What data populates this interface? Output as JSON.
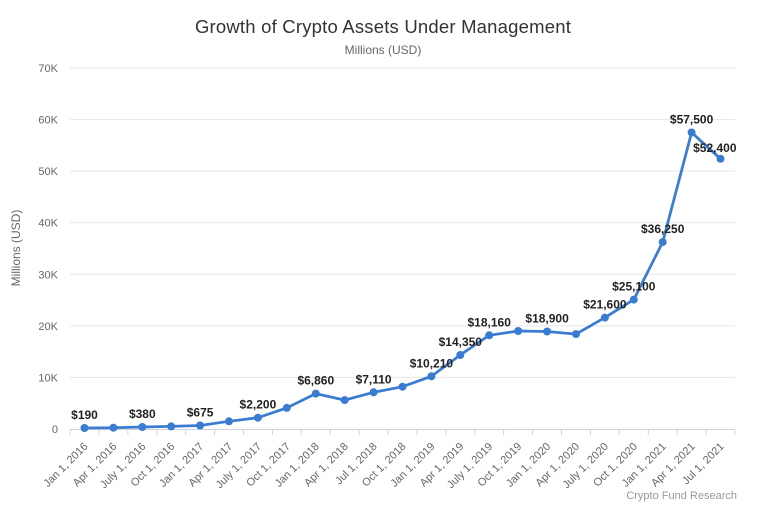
{
  "chart_data": {
    "type": "line",
    "title": "Growth of Crypto Assets Under Management",
    "subtitle": "Millions (USD)",
    "ylabel": "Millions (USD)",
    "credit": "Crypto Fund Research",
    "legend": "none",
    "grid": "horizontal",
    "ylim": [
      0,
      70000
    ],
    "ytick_step": 10000,
    "ytick_labels": [
      "0",
      "10K",
      "20K",
      "30K",
      "40K",
      "50K",
      "60K",
      "70K"
    ],
    "colors": {
      "line": "#3b7cd3",
      "marker": "#3b7cd3",
      "data_label": "#222222",
      "grid": "#e6e6e6",
      "axis": "#ccd3dd",
      "tick_label": "#666666",
      "title": "#333333",
      "credit": "#999999"
    },
    "points": [
      {
        "x": "Jan 1, 2016",
        "value": 190,
        "label": "$190"
      },
      {
        "x": "Apr 1, 2016",
        "value": 250,
        "label": null
      },
      {
        "x": "July 1, 2016",
        "value": 380,
        "label": "$380"
      },
      {
        "x": "Oct 1, 2016",
        "value": 500,
        "label": null
      },
      {
        "x": "Jan 1, 2017",
        "value": 675,
        "label": "$675"
      },
      {
        "x": "Apr 1, 2017",
        "value": 1500,
        "label": null
      },
      {
        "x": "July 1, 2017",
        "value": 2200,
        "label": "$2,200"
      },
      {
        "x": "Oct 1, 2017",
        "value": 4100,
        "label": null
      },
      {
        "x": "Jan 1, 2018",
        "value": 6860,
        "label": "$6,860"
      },
      {
        "x": "Apr 1, 2018",
        "value": 5600,
        "label": null
      },
      {
        "x": "Jul 1, 2018",
        "value": 7110,
        "label": "$7,110"
      },
      {
        "x": "Oct 1, 2018",
        "value": 8200,
        "label": null
      },
      {
        "x": "Jan 1, 2019",
        "value": 10210,
        "label": "$10,210"
      },
      {
        "x": "Apr 1, 2019",
        "value": 14350,
        "label": "$14,350"
      },
      {
        "x": "July 1, 2019",
        "value": 18160,
        "label": "$18,160"
      },
      {
        "x": "Oct 1, 2019",
        "value": 19000,
        "label": null
      },
      {
        "x": "Jan 1, 2020",
        "value": 18900,
        "label": "$18,900"
      },
      {
        "x": "Apr 1, 2020",
        "value": 18400,
        "label": null
      },
      {
        "x": "July 1, 2020",
        "value": 21600,
        "label": "$21,600"
      },
      {
        "x": "Oct 1, 2020",
        "value": 25100,
        "label": "$25,100"
      },
      {
        "x": "Jan 1, 2021",
        "value": 36250,
        "label": "$36,250"
      },
      {
        "x": "Apr 1, 2021",
        "value": 57500,
        "label": "$57,500"
      },
      {
        "x": "Jul 1, 2021",
        "value": 52400,
        "label": "$52,400",
        "label_align": "end"
      }
    ]
  }
}
